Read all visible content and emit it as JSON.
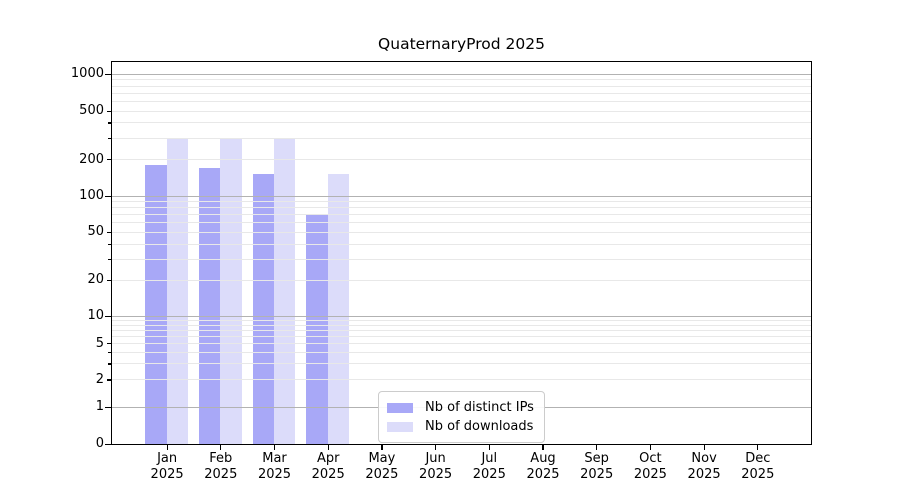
{
  "chart_data": {
    "type": "bar",
    "title": "QuaternaryProd 2025",
    "categories": [
      "Jan 2025",
      "Feb 2025",
      "Mar 2025",
      "Apr 2025",
      "May 2025",
      "Jun 2025",
      "Jul 2025",
      "Aug 2025",
      "Sep 2025",
      "Oct 2025",
      "Nov 2025",
      "Dec 2025"
    ],
    "series": [
      {
        "name": "Nb of distinct IPs",
        "color": "#a8a8f7",
        "values": [
          180,
          170,
          150,
          70,
          null,
          null,
          null,
          null,
          null,
          null,
          null,
          null
        ]
      },
      {
        "name": "Nb of downloads",
        "color": "#dcdcfa",
        "values": [
          300,
          290,
          290,
          150,
          null,
          null,
          null,
          null,
          null,
          null,
          null,
          null
        ]
      }
    ],
    "yscale": "symlog",
    "yticks": [
      0,
      1,
      2,
      5,
      10,
      20,
      50,
      100,
      200,
      500,
      1000
    ],
    "ylim": [
      0,
      1250
    ],
    "xlabel": "",
    "ylabel": "",
    "grid": "on",
    "legend_position": "lower center",
    "colors": {
      "major_grid": "#b2b2b2",
      "minor_grid": "#e8e8e8",
      "axis": "#000000",
      "background": "#ffffff"
    }
  }
}
